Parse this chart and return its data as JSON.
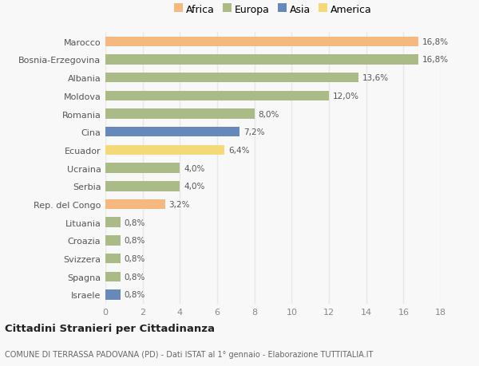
{
  "countries": [
    "Marocco",
    "Bosnia-Erzegovina",
    "Albania",
    "Moldova",
    "Romania",
    "Cina",
    "Ecuador",
    "Ucraina",
    "Serbia",
    "Rep. del Congo",
    "Lituania",
    "Croazia",
    "Svizzera",
    "Spagna",
    "Israele"
  ],
  "values": [
    16.8,
    16.8,
    13.6,
    12.0,
    8.0,
    7.2,
    6.4,
    4.0,
    4.0,
    3.2,
    0.8,
    0.8,
    0.8,
    0.8,
    0.8
  ],
  "labels": [
    "16,8%",
    "16,8%",
    "13,6%",
    "12,0%",
    "8,0%",
    "7,2%",
    "6,4%",
    "4,0%",
    "4,0%",
    "3,2%",
    "0,8%",
    "0,8%",
    "0,8%",
    "0,8%",
    "0,8%"
  ],
  "continents": [
    "Africa",
    "Europa",
    "Europa",
    "Europa",
    "Europa",
    "Asia",
    "America",
    "Europa",
    "Europa",
    "Africa",
    "Europa",
    "Europa",
    "Europa",
    "Europa",
    "Asia"
  ],
  "colors": {
    "Africa": "#F5B980",
    "Europa": "#AABB88",
    "Asia": "#6688BB",
    "America": "#F5D878"
  },
  "legend_order": [
    "Africa",
    "Europa",
    "Asia",
    "America"
  ],
  "xlim": [
    0,
    18
  ],
  "xticks": [
    0,
    2,
    4,
    6,
    8,
    10,
    12,
    14,
    16,
    18
  ],
  "title": "Cittadini Stranieri per Cittadinanza",
  "subtitle": "COMUNE DI TERRASSA PADOVANA (PD) - Dati ISTAT al 1° gennaio - Elaborazione TUTTITALIA.IT",
  "background_color": "#f8f8f8",
  "bar_height": 0.55,
  "grid_color": "#e8e8e8"
}
